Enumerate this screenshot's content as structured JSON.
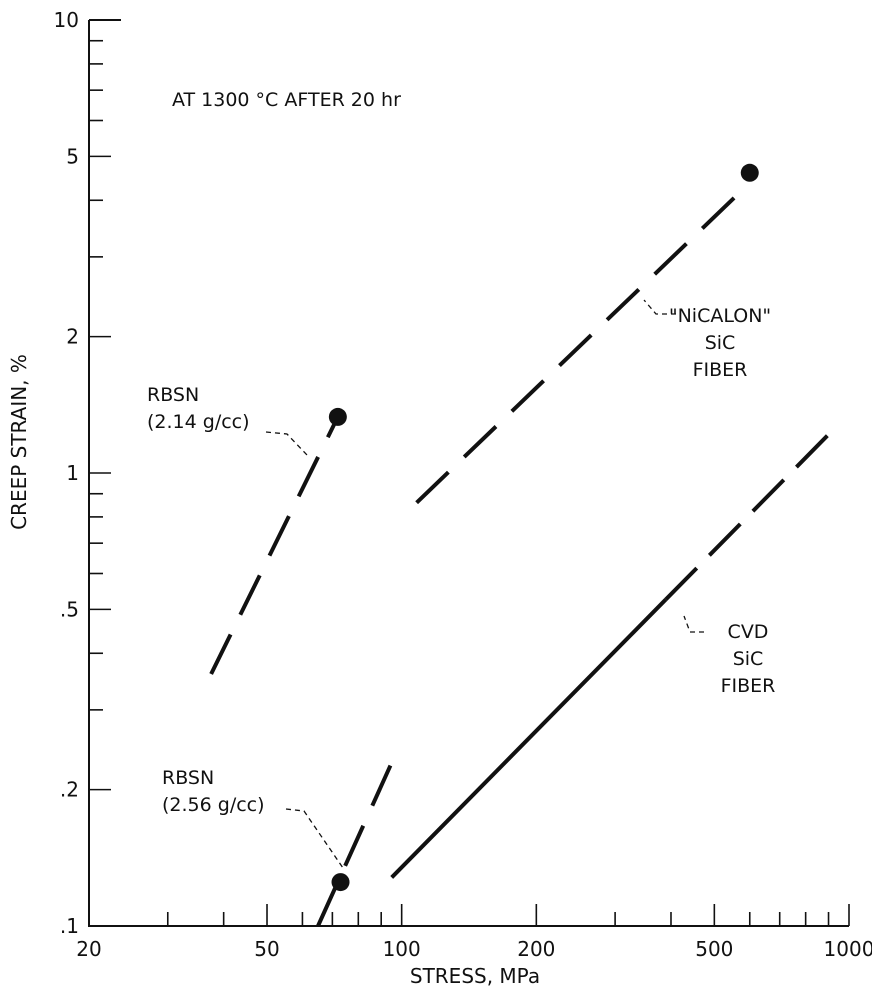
{
  "chart_data": {
    "type": "line",
    "title": "",
    "annotation": "AT 1300 °C AFTER 20 hr",
    "xlabel": "STRESS, MPa",
    "ylabel": "CREEP STRAIN, %",
    "x_scale": "log",
    "y_scale": "log",
    "xlim": [
      20,
      1000
    ],
    "ylim": [
      0.1,
      10
    ],
    "x_tick_labels": [
      {
        "value": 20,
        "label": "20"
      },
      {
        "value": 50,
        "label": "50"
      },
      {
        "value": 100,
        "label": "100"
      },
      {
        "value": 200,
        "label": "200"
      },
      {
        "value": 500,
        "label": "500"
      },
      {
        "value": 1000,
        "label": "1000"
      }
    ],
    "y_tick_labels": [
      {
        "value": 0.1,
        "label": ".1"
      },
      {
        "value": 0.2,
        "label": ".2"
      },
      {
        "value": 0.5,
        "label": ".5"
      },
      {
        "value": 1,
        "label": "1"
      },
      {
        "value": 2,
        "label": "2"
      },
      {
        "value": 5,
        "label": "5"
      },
      {
        "value": 10,
        "label": "10"
      }
    ],
    "x_minor_ticks": [
      30,
      40,
      60,
      70,
      80,
      90,
      300,
      400,
      600,
      700,
      800,
      900
    ],
    "y_minor_ticks": [
      0.3,
      0.4,
      0.6,
      0.7,
      0.8,
      0.9,
      3,
      4,
      6,
      7,
      8,
      9
    ],
    "grid": false,
    "legend": "none (series labelled directly on plot)",
    "series": [
      {
        "label_lines": [
          "RBSN",
          "(2.14 g/cc)"
        ],
        "dash": "long-dash",
        "x": [
          37.5,
          72
        ],
        "y": [
          0.36,
          1.33
        ],
        "marker": {
          "x": 72,
          "y": 1.33
        }
      },
      {
        "label_lines": [
          "RBSN",
          "(2.56 g/cc)"
        ],
        "dash": "long-dash",
        "x": [
          65,
          97
        ],
        "y": [
          0.1,
          0.24
        ],
        "marker": {
          "x": 73,
          "y": 0.125
        }
      },
      {
        "label_lines": [
          "\"NiCALON\"",
          "SiC",
          "FIBER"
        ],
        "dash": "long-dash",
        "x": [
          108,
          590
        ],
        "y": [
          0.86,
          4.3
        ],
        "marker": {
          "x": 600,
          "y": 4.6
        }
      },
      {
        "label_lines": [
          "CVD",
          "SiC",
          "FIBER"
        ],
        "dash": "solid-to-long-dash",
        "x": [
          95,
          925
        ],
        "y": [
          0.128,
          1.25
        ],
        "marker": null
      }
    ]
  }
}
